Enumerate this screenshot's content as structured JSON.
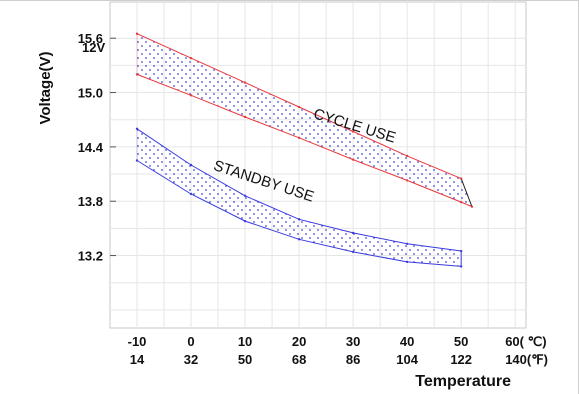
{
  "chart_data": {
    "type": "area",
    "title": "",
    "voltage_prefix": "12V",
    "ylabel": "Voltage(V)",
    "xlabel": "Temperature",
    "ylim": [
      12.4,
      16.0
    ],
    "xlim": [
      -15,
      62
    ],
    "yticks": [
      {
        "value": 15.6,
        "label": "15.6"
      },
      {
        "value": 15.0,
        "label": "15.0"
      },
      {
        "value": 14.4,
        "label": "14.4"
      },
      {
        "value": 13.8,
        "label": "13.8"
      },
      {
        "value": 13.2,
        "label": "13.2"
      }
    ],
    "xticks_c": [
      {
        "value": -10,
        "label": "-10"
      },
      {
        "value": 0,
        "label": "0"
      },
      {
        "value": 10,
        "label": "10"
      },
      {
        "value": 20,
        "label": "20"
      },
      {
        "value": 30,
        "label": "30"
      },
      {
        "value": 40,
        "label": "40"
      },
      {
        "value": 50,
        "label": "50"
      },
      {
        "value": 60,
        "label": "60(  ℃)"
      }
    ],
    "xticks_f": [
      {
        "value": -10,
        "label": "14"
      },
      {
        "value": 0,
        "label": "32"
      },
      {
        "value": 10,
        "label": "50"
      },
      {
        "value": 20,
        "label": "68"
      },
      {
        "value": 30,
        "label": "86"
      },
      {
        "value": 40,
        "label": "104"
      },
      {
        "value": 50,
        "label": "122"
      },
      {
        "value": 60,
        "label": "140(℉)"
      }
    ],
    "grid": true,
    "series": [
      {
        "name": "CYCLE USE",
        "color": "#e8383d",
        "upper": {
          "x": [
            -10,
            0,
            10,
            20,
            30,
            40,
            50
          ],
          "y": [
            15.65,
            15.38,
            15.11,
            14.84,
            14.57,
            14.3,
            14.05
          ]
        },
        "lower": {
          "x": [
            -10,
            0,
            10,
            20,
            30,
            40,
            50,
            52
          ],
          "y": [
            15.2,
            14.97,
            14.73,
            14.5,
            14.26,
            14.03,
            13.79,
            13.74
          ]
        },
        "end_x": 52
      },
      {
        "name": "STANDBY USE",
        "color": "#3a3ae0",
        "upper": {
          "x": [
            -10,
            0,
            10,
            20,
            30,
            40,
            50
          ],
          "y": [
            14.6,
            14.2,
            13.86,
            13.6,
            13.45,
            13.33,
            13.25
          ]
        },
        "lower": {
          "x": [
            -10,
            0,
            10,
            20,
            30,
            40,
            50
          ],
          "y": [
            14.25,
            13.88,
            13.58,
            13.38,
            13.24,
            13.13,
            13.08
          ]
        },
        "end_x": 50
      }
    ]
  }
}
